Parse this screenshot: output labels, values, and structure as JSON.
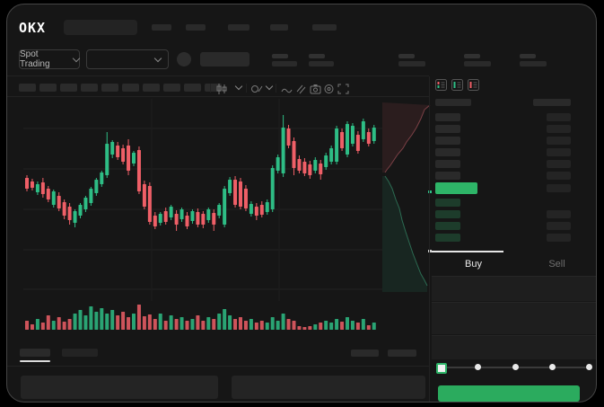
{
  "app": {
    "brand": "OKX"
  },
  "header": {
    "market_selector_label": "Spot Trading"
  },
  "trade_panel": {
    "buy_tab_label": "Buy",
    "sell_tab_label": "Sell",
    "slider_stops_percent": [
      0,
      25,
      50,
      75,
      100
    ],
    "slider_value_percent": 0
  },
  "orderbook": {
    "view_toggle_icons": [
      "book-both-icon",
      "book-bids-icon",
      "book-asks-icon"
    ],
    "ask_row_count": 6,
    "bid_row_count": 4
  },
  "toolbar_icons": [
    "chart-type-candles-icon",
    "chevron-down-icon",
    "indicators-icon",
    "chevron-down-icon",
    "line-icon",
    "compare-icon",
    "camera-icon",
    "settings-circle-icon",
    "fullscreen-icon"
  ],
  "colors": {
    "candle_up": "#2ebd85",
    "candle_down": "#ef5f67",
    "accent_green": "#2bab5e",
    "orderbook_price_highlight": "#2eb568",
    "bid_depth_bar": "#1d3c2b"
  },
  "chart_data": [
    {
      "type": "candlestick",
      "note": "no axis labels visible; values in relative price units",
      "ylim": [
        0,
        215
      ],
      "candles": [
        [
          134,
          137,
          119,
          122
        ],
        [
          130,
          133,
          120,
          123
        ],
        [
          118,
          130,
          115,
          127
        ],
        [
          129,
          134,
          112,
          116
        ],
        [
          122,
          125,
          107,
          110
        ],
        [
          104,
          121,
          101,
          119
        ],
        [
          114,
          118,
          97,
          100
        ],
        [
          107,
          110,
          88,
          92
        ],
        [
          102,
          106,
          82,
          87
        ],
        [
          84,
          99,
          79,
          97
        ],
        [
          92,
          106,
          89,
          104
        ],
        [
          99,
          114,
          96,
          112
        ],
        [
          106,
          124,
          103,
          122
        ],
        [
          117,
          134,
          114,
          132
        ],
        [
          127,
          142,
          124,
          140
        ],
        [
          137,
          185,
          134,
          172
        ],
        [
          160,
          176,
          156,
          174
        ],
        [
          170,
          174,
          154,
          157
        ],
        [
          167,
          171,
          149,
          152
        ],
        [
          170,
          177,
          137,
          142
        ],
        [
          150,
          164,
          147,
          162
        ],
        [
          165,
          169,
          116,
          119
        ],
        [
          127,
          131,
          99,
          102
        ],
        [
          125,
          129,
          82,
          85
        ],
        [
          92,
          96,
          77,
          80
        ],
        [
          84,
          96,
          81,
          94
        ],
        [
          97,
          101,
          82,
          85
        ],
        [
          90,
          104,
          87,
          102
        ],
        [
          94,
          98,
          75,
          82
        ],
        [
          88,
          101,
          85,
          99
        ],
        [
          92,
          96,
          77,
          80
        ],
        [
          86,
          99,
          83,
          97
        ],
        [
          96,
          100,
          79,
          82
        ],
        [
          94,
          97,
          78,
          82
        ],
        [
          87,
          101,
          84,
          99
        ],
        [
          95,
          99,
          75,
          82
        ],
        [
          92,
          106,
          89,
          104
        ],
        [
          82,
          125,
          79,
          122
        ],
        [
          117,
          135,
          114,
          132
        ],
        [
          132,
          136,
          101,
          104
        ],
        [
          130,
          134,
          99,
          102
        ],
        [
          122,
          126,
          97,
          100
        ],
        [
          94,
          108,
          91,
          105
        ],
        [
          102,
          106,
          87,
          92
        ],
        [
          104,
          108,
          90,
          93
        ],
        [
          96,
          110,
          93,
          107
        ],
        [
          99,
          148,
          96,
          145
        ],
        [
          142,
          160,
          139,
          157
        ],
        [
          139,
          204,
          135,
          190
        ],
        [
          189,
          193,
          167,
          170
        ],
        [
          175,
          179,
          137,
          145
        ],
        [
          155,
          159,
          139,
          142
        ],
        [
          152,
          156,
          136,
          139
        ],
        [
          149,
          153,
          133,
          137
        ],
        [
          142,
          157,
          139,
          154
        ],
        [
          150,
          154,
          132,
          138
        ],
        [
          146,
          162,
          143,
          159
        ],
        [
          152,
          170,
          149,
          167
        ],
        [
          152,
          192,
          149,
          189
        ],
        [
          185,
          189,
          164,
          167
        ],
        [
          160,
          197,
          157,
          194
        ],
        [
          172,
          195,
          169,
          192
        ],
        [
          182,
          186,
          161,
          164
        ],
        [
          177,
          200,
          174,
          197
        ],
        [
          185,
          189,
          169,
          172
        ],
        [
          175,
          193,
          172,
          190
        ]
      ]
    },
    {
      "type": "bar",
      "name": "volume",
      "values": [
        10,
        6,
        12,
        8,
        16,
        10,
        14,
        9,
        12,
        18,
        22,
        16,
        26,
        20,
        24,
        18,
        22,
        16,
        20,
        14,
        18,
        28,
        15,
        17,
        12,
        18,
        10,
        16,
        12,
        14,
        10,
        12,
        16,
        10,
        14,
        12,
        18,
        23,
        16,
        12,
        14,
        10,
        12,
        8,
        10,
        8,
        14,
        10,
        18,
        12,
        10,
        4,
        3,
        4,
        6,
        8,
        10,
        8,
        12,
        9,
        14,
        10,
        8,
        12,
        5,
        8
      ]
    },
    {
      "type": "area",
      "name": "depth",
      "asks_line": [
        [
          478,
          117
        ],
        [
          472,
          122
        ],
        [
          468,
          132
        ],
        [
          463,
          142
        ],
        [
          458,
          150
        ],
        [
          452,
          158
        ],
        [
          448,
          165
        ],
        [
          442,
          172
        ],
        [
          438,
          178
        ],
        [
          434,
          184
        ],
        [
          430,
          189
        ],
        [
          428,
          192
        ]
      ],
      "bids_line": [
        [
          428,
          196
        ],
        [
          432,
          202
        ],
        [
          436,
          210
        ],
        [
          440,
          222
        ],
        [
          444,
          232
        ],
        [
          447,
          245
        ],
        [
          451,
          258
        ],
        [
          455,
          270
        ],
        [
          459,
          282
        ],
        [
          464,
          295
        ],
        [
          468,
          305
        ],
        [
          472,
          312
        ],
        [
          475,
          318
        ]
      ]
    }
  ]
}
